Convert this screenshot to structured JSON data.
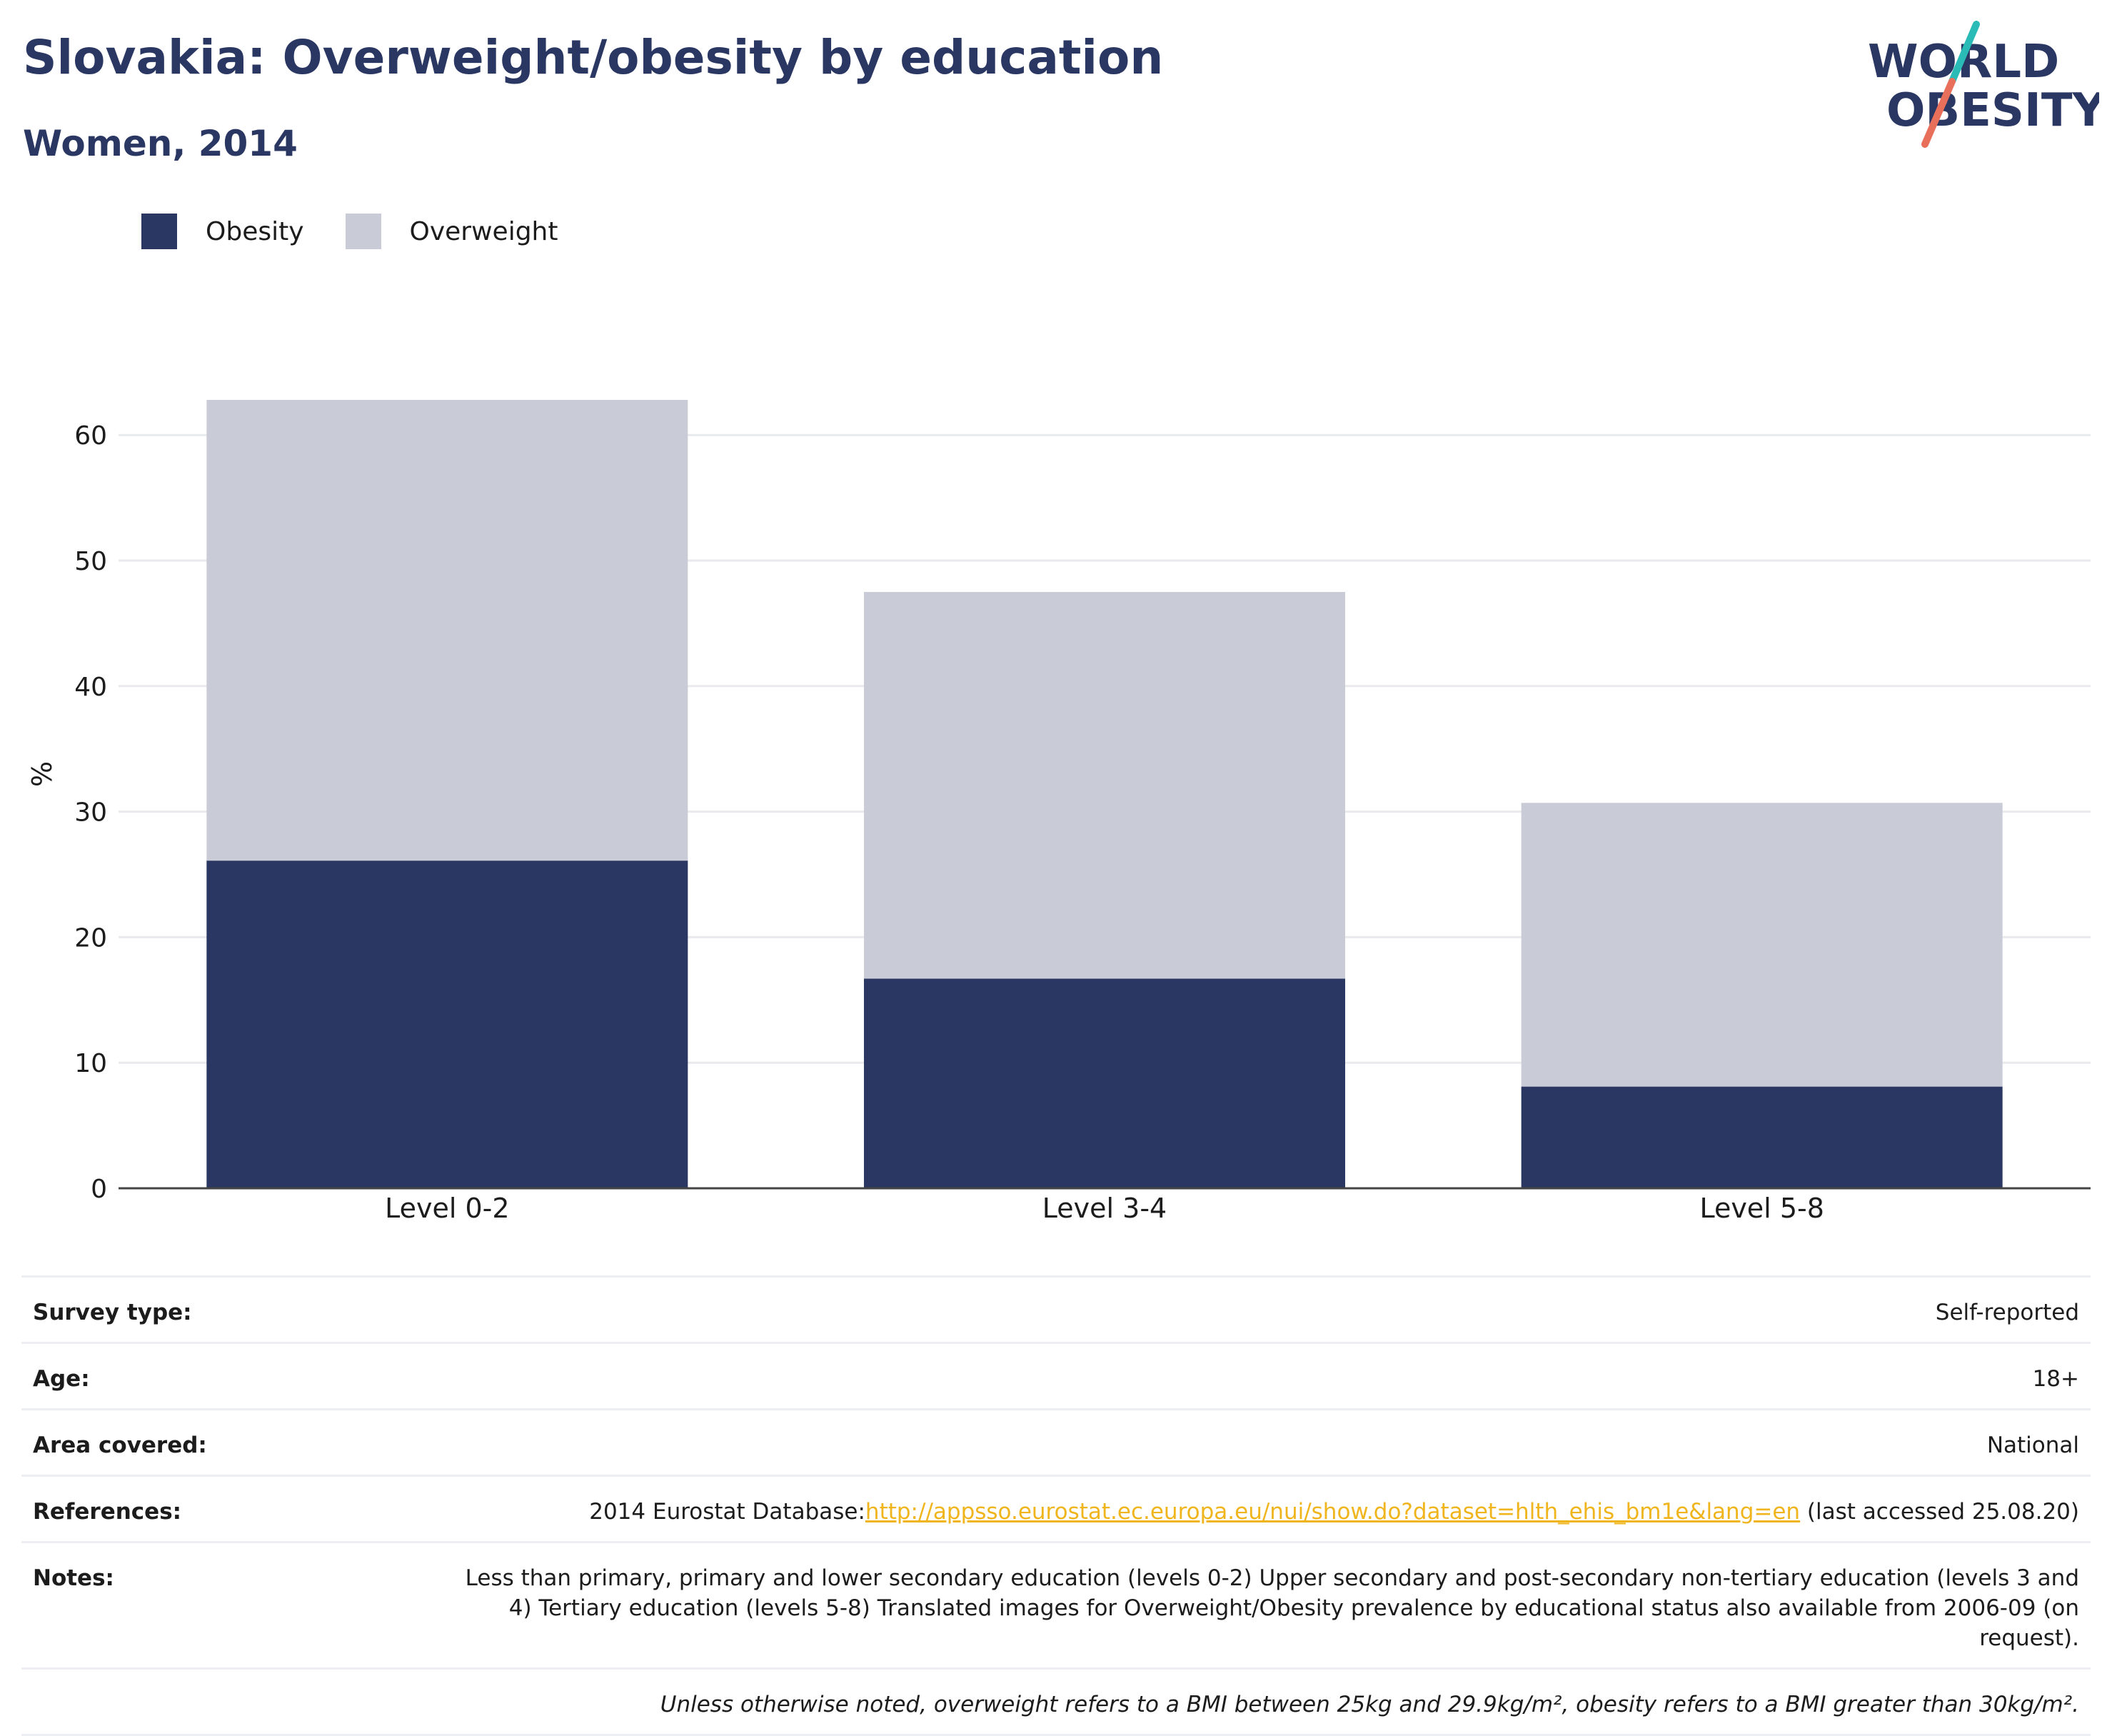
{
  "header": {
    "title": "Slovakia: Overweight/obesity by education",
    "subtitle": "Women, 2014"
  },
  "logo": {
    "line1": "WORLD",
    "line2": "OBESITY",
    "colors": {
      "navy": "#2a3762",
      "teal": "#2bbbb6",
      "coral": "#e8705a"
    }
  },
  "legend": [
    {
      "label": "Obesity",
      "color": "#2a3762"
    },
    {
      "label": "Overweight",
      "color": "#c9cbd6"
    }
  ],
  "chart_data": {
    "type": "bar",
    "stacked": true,
    "categories": [
      "Level 0-2",
      "Level 3-4",
      "Level 5-8"
    ],
    "series": [
      {
        "name": "Obesity",
        "color": "#2a3762",
        "values": [
          26.1,
          16.7,
          8.1
        ]
      },
      {
        "name": "Overweight",
        "color": "#c9cbd6",
        "values": [
          36.7,
          30.8,
          22.6
        ]
      }
    ],
    "ylabel": "%",
    "ylim": [
      0,
      65
    ],
    "yticks": [
      0,
      10,
      20,
      30,
      40,
      50,
      60
    ],
    "grid": true,
    "legend_position": "top-left"
  },
  "info": {
    "survey_type": {
      "label": "Survey type:",
      "value": "Self-reported"
    },
    "age": {
      "label": "Age:",
      "value": "18+"
    },
    "area": {
      "label": "Area covered:",
      "value": "National"
    },
    "references": {
      "label": "References:",
      "prefix": "2014 Eurostat Database:",
      "link": "http://appsso.eurostat.ec.europa.eu/nui/show.do?dataset=hlth_ehis_bm1e&lang=en",
      "suffix": " (last accessed 25.08.20)"
    },
    "notes": {
      "label": "Notes:",
      "value": "Less than primary, primary and lower secondary education (levels 0-2) Upper secondary and post-secondary non-tertiary education (levels 3 and 4) Tertiary education (levels 5-8) Translated images for Overweight/Obesity prevalence by educational status also available from 2006-09 (on request)."
    },
    "footnote": "Unless otherwise noted, overweight refers to a BMI between 25kg and 29.9kg/m², obesity refers to a BMI greater than 30kg/m²."
  }
}
